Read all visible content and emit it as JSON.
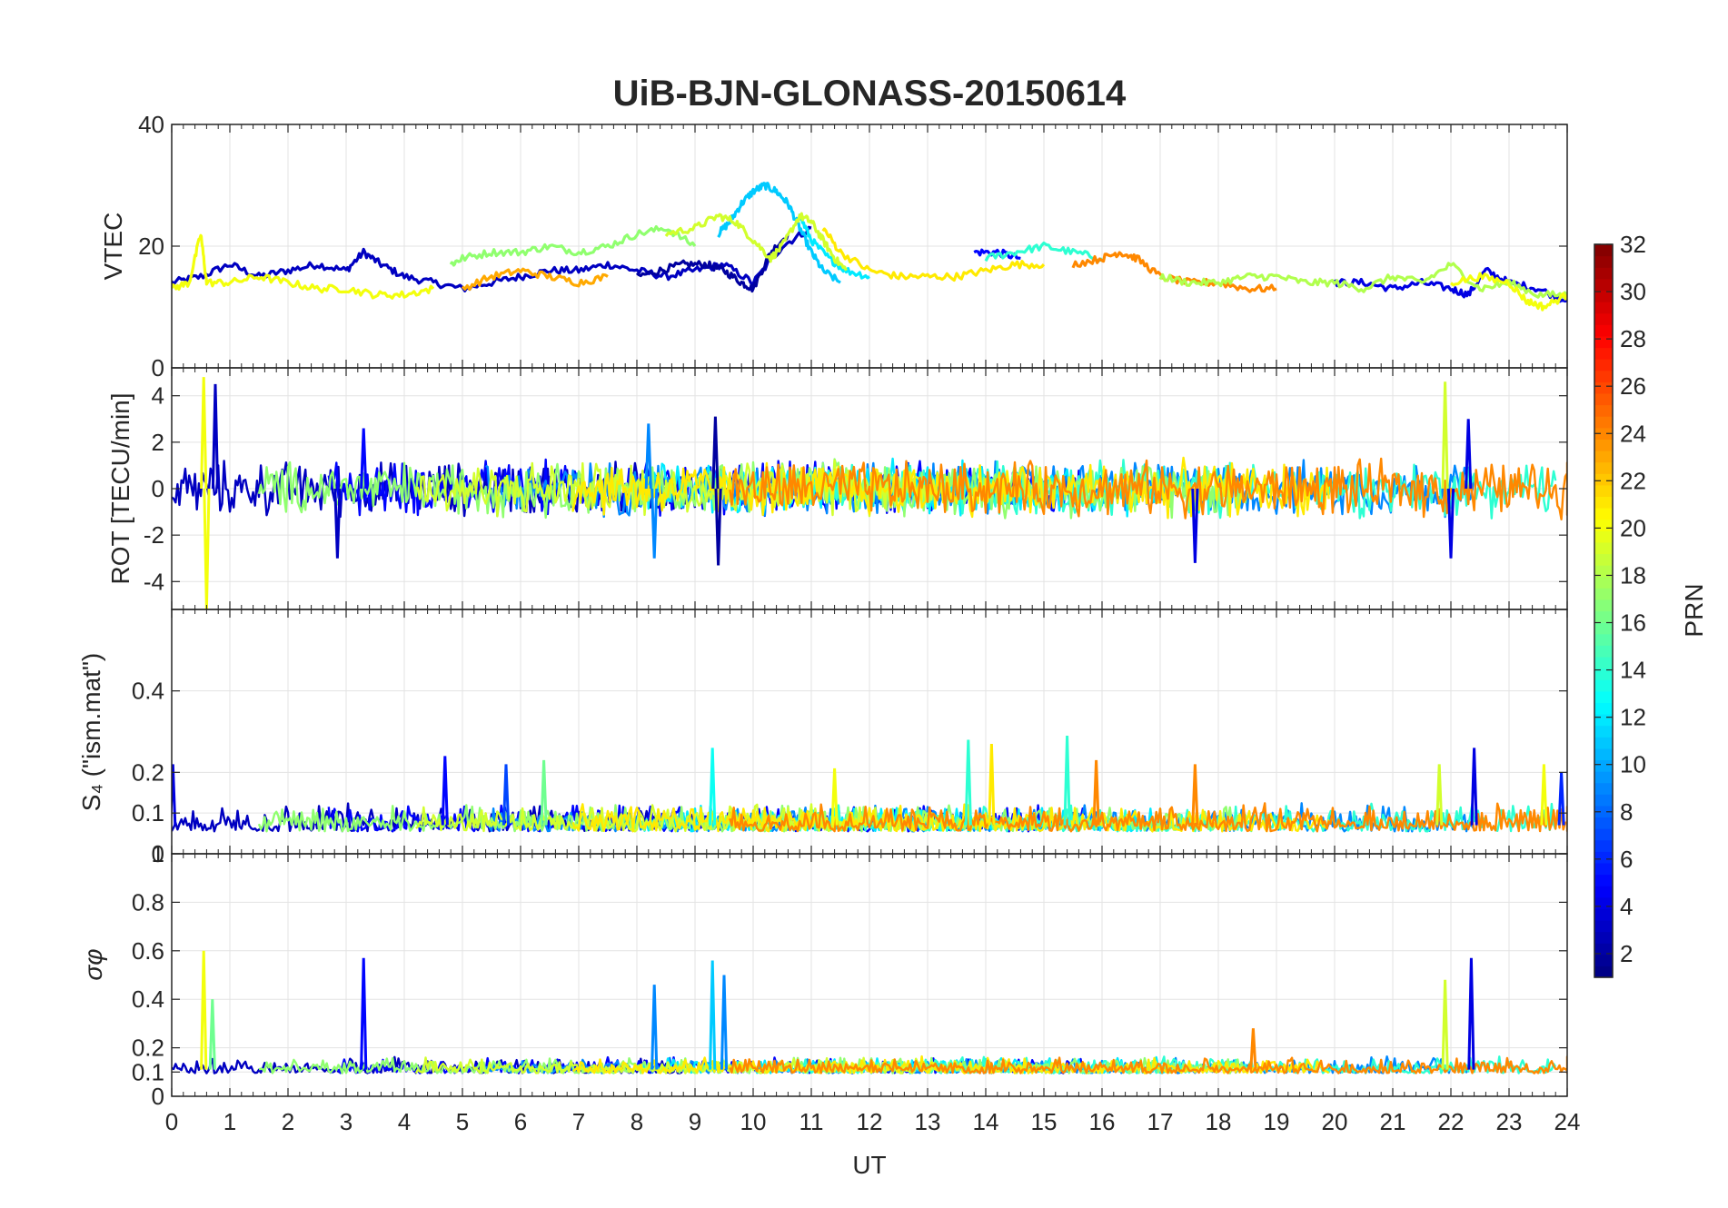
{
  "chart_data": {
    "type": "line",
    "title": "UiB-BJN-GLONASS-20150614",
    "xlabel": "UT",
    "xlim": [
      0,
      24
    ],
    "xticks": [
      "0",
      "1",
      "2",
      "3",
      "4",
      "5",
      "6",
      "7",
      "8",
      "9",
      "10",
      "11",
      "12",
      "13",
      "14",
      "15",
      "16",
      "17",
      "18",
      "19",
      "20",
      "21",
      "22",
      "23",
      "24"
    ],
    "grid": true,
    "colormap": "jet",
    "colorbar": {
      "label": "PRN",
      "range": [
        1,
        32
      ],
      "ticks": [
        "2",
        "4",
        "6",
        "8",
        "10",
        "12",
        "14",
        "16",
        "18",
        "20",
        "22",
        "24",
        "26",
        "28",
        "30",
        "32"
      ],
      "placement": "right"
    },
    "panels": [
      {
        "id": "vtec",
        "ylabel": "VTEC",
        "ylim": [
          0,
          40
        ],
        "yticks": [
          "0",
          "20",
          "40"
        ],
        "series": [
          {
            "prn": 3,
            "x": [
              0,
              0.5,
              1,
              1.5,
              2,
              2.5,
              3,
              3.3,
              3.6,
              4,
              4.5,
              5,
              5.5,
              6,
              6.5,
              7,
              7.5,
              8,
              8.5,
              9,
              9.5,
              10,
              10.5,
              11
            ],
            "y": [
              14,
              15,
              17,
              15,
              16,
              17,
              16,
              19,
              17,
              15,
              14,
              13,
              14,
              15,
              16,
              16,
              17,
              16,
              15,
              16,
              17,
              14,
              20,
              23
            ]
          },
          {
            "prn": 5,
            "x": [
              13.8,
              14.2,
              14.6
            ],
            "y": [
              19,
              19,
              18
            ]
          },
          {
            "prn": 2,
            "x": [
              8,
              8.4,
              8.8,
              9.2,
              9.5,
              9.8,
              10,
              10.3,
              10.6
            ],
            "y": [
              15,
              16,
              17,
              17,
              16,
              14,
              13,
              19,
              22
            ]
          },
          {
            "prn": 4,
            "x": [
              20,
              20.5,
              21,
              21.5,
              22,
              22.3,
              22.6,
              23,
              23.5,
              24
            ],
            "y": [
              14,
              14,
              13,
              14,
              13,
              12,
              16,
              14,
              13,
              11
            ]
          },
          {
            "prn": 11,
            "x": [
              9.4,
              9.6,
              9.8,
              10,
              10.2,
              10.4,
              10.6,
              10.8,
              11,
              11.2,
              11.5
            ],
            "y": [
              22,
              24,
              27,
              29,
              30,
              29,
              27,
              23,
              19,
              16,
              14
            ]
          },
          {
            "prn": 14,
            "x": [
              14,
              14.5,
              15,
              15.5,
              16
            ],
            "y": [
              18,
              19,
              20,
              19,
              18
            ]
          },
          {
            "prn": 12,
            "x": [
              10.8,
              11,
              11.3,
              11.6,
              12
            ],
            "y": [
              25,
              21,
              18,
              16,
              15
            ]
          },
          {
            "prn": 17,
            "x": [
              4.8,
              5,
              5.5,
              6,
              6.5,
              7,
              7.5,
              8,
              8.5,
              9
            ],
            "y": [
              17,
              18,
              19,
              19,
              20,
              19,
              20,
              22,
              23,
              20
            ]
          },
          {
            "prn": 19,
            "x": [
              8.5,
              9,
              9.4,
              9.7,
              10,
              10.3,
              10.5,
              10.8,
              11,
              11.2,
              11.4,
              11.6
            ],
            "y": [
              22,
              23,
              25,
              24,
              21,
              18,
              20,
              25,
              24,
              21,
              18,
              16
            ]
          },
          {
            "prn": 21,
            "x": [
              11.2,
              11.5,
              12,
              12.5,
              13,
              13.5,
              14,
              14.5,
              15
            ],
            "y": [
              23,
              19,
              16,
              15,
              15,
              15,
              16,
              17,
              17
            ]
          },
          {
            "prn": 20,
            "x": [
              0,
              0.3,
              0.5,
              0.6,
              1,
              1.5,
              2,
              2.5,
              3,
              3.5,
              4,
              4.5
            ],
            "y": [
              13,
              14,
              22,
              14,
              14,
              15,
              14,
              13,
              13,
              12,
              12,
              13
            ]
          },
          {
            "prn": 23,
            "x": [
              5,
              5.5,
              6,
              6.5,
              7,
              7.5
            ],
            "y": [
              13,
              15,
              16,
              15,
              14,
              15
            ]
          },
          {
            "prn": 24,
            "x": [
              15.5,
              16,
              16.3,
              16.6,
              17,
              17.5,
              18,
              18.5,
              19
            ],
            "y": [
              17,
              18,
              19,
              18,
              15,
              14,
              14,
              13,
              13
            ]
          },
          {
            "prn": 18,
            "x": [
              17,
              17.5,
              18,
              18.5,
              19,
              19.5,
              20,
              20.5,
              21,
              21.5,
              22,
              22.5,
              23,
              23.5,
              24
            ],
            "y": [
              15,
              14,
              14,
              15,
              15,
              14,
              14,
              13,
              15,
              14,
              17,
              13,
              14,
              12,
              12
            ]
          },
          {
            "prn": 20,
            "x": [
              22,
              22.5,
              23,
              23.3,
              23.6,
              24
            ],
            "y": [
              14,
              15,
              14,
              11,
              10,
              12
            ]
          }
        ]
      },
      {
        "id": "rot",
        "ylabel": "ROT [TECU/min]",
        "ylim": [
          -5.2,
          5.2
        ],
        "yticks": [
          "-4",
          "-2",
          "0",
          "2",
          "4"
        ],
        "spikes": [
          {
            "prn": 20,
            "x": 0.55,
            "y": 4.8
          },
          {
            "prn": 20,
            "x": 0.6,
            "y": -5.2
          },
          {
            "prn": 3,
            "x": 0.75,
            "y": 4.5
          },
          {
            "prn": 5,
            "x": 3.3,
            "y": 2.6
          },
          {
            "prn": 3,
            "x": 2.85,
            "y": -3
          },
          {
            "prn": 2,
            "x": 9.35,
            "y": 3.1
          },
          {
            "prn": 2,
            "x": 9.4,
            "y": -3.3
          },
          {
            "prn": 9,
            "x": 8.2,
            "y": 2.8
          },
          {
            "prn": 9,
            "x": 8.3,
            "y": -3
          },
          {
            "prn": 4,
            "x": 17.6,
            "y": -3.2
          },
          {
            "prn": 19,
            "x": 21.9,
            "y": 4.6
          },
          {
            "prn": 4,
            "x": 22.3,
            "y": 3
          },
          {
            "prn": 4,
            "x": 22.0,
            "y": -3
          }
        ]
      },
      {
        "id": "s4",
        "ylabel": "S₄ (\"ism.mat\")",
        "ylim": [
          0,
          0.6
        ],
        "yticks": [
          "0",
          "0.1",
          "0.2",
          "0.4"
        ],
        "spikes": [
          {
            "prn": 4,
            "x": 0.02,
            "y": 0.22
          },
          {
            "prn": 5,
            "x": 4.7,
            "y": 0.24
          },
          {
            "prn": 7,
            "x": 5.75,
            "y": 0.22
          },
          {
            "prn": 16,
            "x": 6.4,
            "y": 0.23
          },
          {
            "prn": 13,
            "x": 9.3,
            "y": 0.26
          },
          {
            "prn": 20,
            "x": 11.4,
            "y": 0.21
          },
          {
            "prn": 14,
            "x": 13.7,
            "y": 0.28
          },
          {
            "prn": 21,
            "x": 14.1,
            "y": 0.27
          },
          {
            "prn": 14,
            "x": 15.4,
            "y": 0.29
          },
          {
            "prn": 24,
            "x": 15.9,
            "y": 0.23
          },
          {
            "prn": 24,
            "x": 17.6,
            "y": 0.22
          },
          {
            "prn": 19,
            "x": 21.8,
            "y": 0.22
          },
          {
            "prn": 4,
            "x": 22.4,
            "y": 0.26
          },
          {
            "prn": 20,
            "x": 23.6,
            "y": 0.22
          },
          {
            "prn": 6,
            "x": 23.9,
            "y": 0.2
          }
        ]
      },
      {
        "id": "sigma_phi",
        "ylabel": "σφ",
        "ylim": [
          0,
          1
        ],
        "yticks": [
          "0",
          "0.1",
          "0.2",
          "0.4",
          "0.6",
          "0.8",
          "1"
        ],
        "spikes": [
          {
            "prn": 20,
            "x": 0.55,
            "y": 0.6
          },
          {
            "prn": 16,
            "x": 0.7,
            "y": 0.4
          },
          {
            "prn": 5,
            "x": 3.3,
            "y": 0.57
          },
          {
            "prn": 9,
            "x": 8.3,
            "y": 0.46
          },
          {
            "prn": 11,
            "x": 9.3,
            "y": 0.56
          },
          {
            "prn": 9,
            "x": 9.5,
            "y": 0.5
          },
          {
            "prn": 24,
            "x": 18.6,
            "y": 0.28
          },
          {
            "prn": 19,
            "x": 21.9,
            "y": 0.48
          },
          {
            "prn": 4,
            "x": 22.35,
            "y": 0.57
          }
        ]
      }
    ]
  }
}
